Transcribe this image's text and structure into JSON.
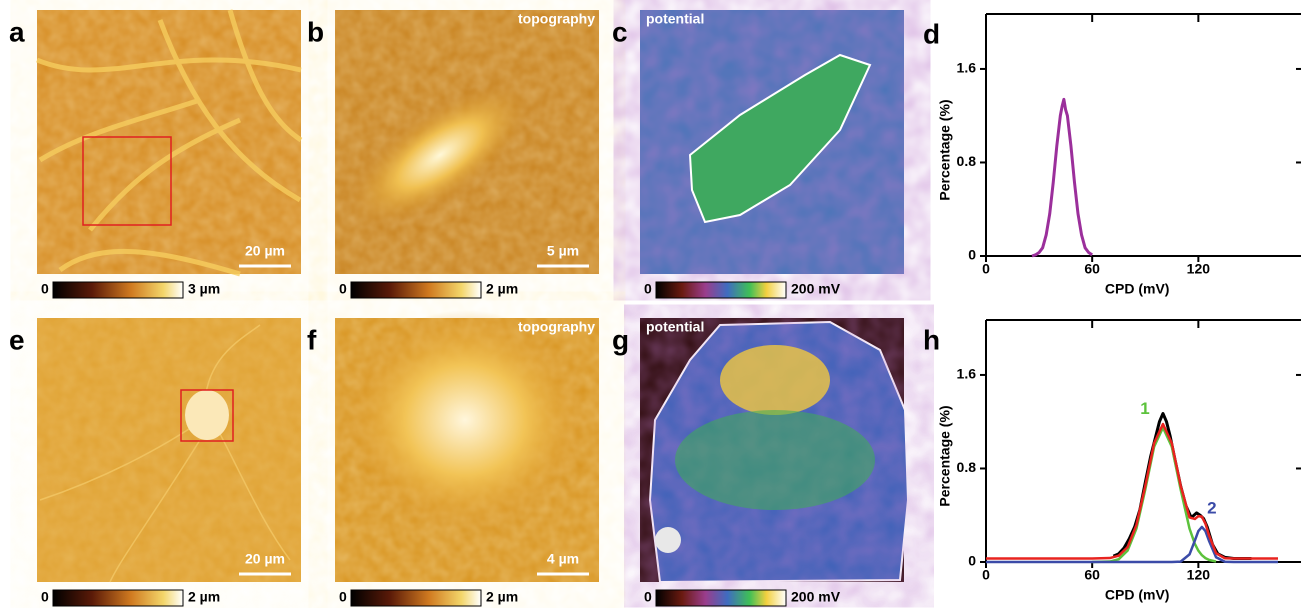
{
  "panels": [
    {
      "letter": "a",
      "scale_bar": "20 µm",
      "colorbar": {
        "min": "0",
        "max": "3 µm"
      }
    },
    {
      "letter": "b",
      "label": "topography",
      "scale_bar": "5 µm",
      "colorbar": {
        "min": "0",
        "max": "2 µm"
      }
    },
    {
      "letter": "c",
      "label": "potential",
      "colorbar": {
        "min": "0",
        "max": "200 mV"
      }
    },
    {
      "letter": "e",
      "scale_bar": "20 µm",
      "colorbar": {
        "min": "0",
        "max": "2 µm"
      }
    },
    {
      "letter": "f",
      "label": "topography",
      "scale_bar": "4 µm",
      "colorbar": {
        "min": "0",
        "max": "2 µm"
      }
    },
    {
      "letter": "g",
      "label": "potential",
      "colorbar": {
        "min": "0",
        "max": "200 mV"
      }
    }
  ],
  "chart_data": [
    {
      "type": "line",
      "letter": "d",
      "xlabel": "CPD (mV)",
      "ylabel": "Percentage (%)",
      "xlim": [
        0,
        178
      ],
      "ylim": [
        0,
        2.07
      ],
      "xticks": [
        0,
        60,
        120
      ],
      "yticks": [
        0,
        0.8,
        1.6
      ],
      "series": [
        {
          "color": "#9b2f9b",
          "x": [
            26,
            28,
            30,
            32,
            34,
            36,
            38,
            40,
            42,
            43,
            44,
            45,
            46,
            48,
            50,
            52,
            54,
            56,
            58,
            60
          ],
          "values": [
            0.0,
            0.01,
            0.03,
            0.07,
            0.18,
            0.36,
            0.63,
            0.94,
            1.2,
            1.28,
            1.34,
            1.25,
            1.2,
            0.94,
            0.63,
            0.36,
            0.18,
            0.07,
            0.03,
            0.01
          ]
        }
      ]
    },
    {
      "type": "line",
      "letter": "h",
      "xlabel": "CPD (mV)",
      "ylabel": "Percentage (%)",
      "xlim": [
        0,
        178
      ],
      "ylim": [
        0,
        2.07
      ],
      "xticks": [
        0,
        60,
        120
      ],
      "yticks": [
        0,
        0.8,
        1.6
      ],
      "series": [
        {
          "color": "#000000",
          "x": [
            72,
            75,
            78,
            81,
            84,
            87,
            90,
            93,
            96,
            98,
            100,
            102,
            104,
            107,
            110,
            113,
            116,
            119,
            121,
            123,
            125,
            128,
            131,
            135,
            140,
            145,
            150
          ],
          "values": [
            0.05,
            0.07,
            0.12,
            0.2,
            0.3,
            0.45,
            0.68,
            0.9,
            1.08,
            1.2,
            1.27,
            1.2,
            1.08,
            0.86,
            0.65,
            0.48,
            0.38,
            0.42,
            0.4,
            0.37,
            0.3,
            0.15,
            0.07,
            0.04,
            0.03,
            0.03,
            0.03
          ]
        },
        {
          "name": "1",
          "color": "#5cc23c",
          "x": [
            60,
            70,
            75,
            80,
            85,
            90,
            95,
            100,
            105,
            110,
            115,
            118,
            120,
            122,
            124,
            126,
            130
          ],
          "values": [
            0.0,
            0.004,
            0.024,
            0.097,
            0.286,
            0.62,
            0.986,
            1.15,
            0.986,
            0.62,
            0.286,
            0.156,
            0.097,
            0.058,
            0.033,
            0.018,
            0.004
          ]
        },
        {
          "name": "2",
          "color": "#3b4ba8",
          "x": [
            0,
            60,
            105,
            110,
            115,
            118,
            120,
            122,
            124,
            126,
            130,
            135,
            140,
            165
          ],
          "values": [
            0.0,
            0.0,
            0.0,
            0.003,
            0.065,
            0.182,
            0.265,
            0.3,
            0.265,
            0.182,
            0.041,
            0.002,
            0.0,
            0.0
          ]
        },
        {
          "color": "#e8231f",
          "x": [
            0,
            40,
            60,
            70,
            75,
            80,
            85,
            90,
            95,
            100,
            105,
            110,
            115,
            118,
            120,
            122,
            124,
            126,
            130,
            135,
            140,
            150,
            165
          ],
          "values": [
            0.03,
            0.03,
            0.03,
            0.034,
            0.054,
            0.127,
            0.316,
            0.65,
            1.016,
            1.18,
            1.016,
            0.653,
            0.381,
            0.368,
            0.392,
            0.388,
            0.328,
            0.23,
            0.075,
            0.032,
            0.03,
            0.03,
            0.03
          ]
        }
      ]
    }
  ]
}
